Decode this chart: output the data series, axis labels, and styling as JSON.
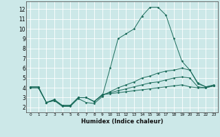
{
  "xlabel": "Humidex (Indice chaleur)",
  "xlim": [
    -0.5,
    23.5
  ],
  "ylim": [
    1.5,
    12.8
  ],
  "yticks": [
    2,
    3,
    4,
    5,
    6,
    7,
    8,
    9,
    10,
    11,
    12
  ],
  "xticks": [
    0,
    1,
    2,
    3,
    4,
    5,
    6,
    7,
    8,
    9,
    10,
    11,
    12,
    13,
    14,
    15,
    16,
    17,
    18,
    19,
    20,
    21,
    22,
    23
  ],
  "bg_color": "#cce8e8",
  "grid_color": "#ffffff",
  "line_color": "#1a6b5a",
  "curves": [
    {
      "x": [
        0,
        1,
        2,
        3,
        4,
        5,
        6,
        7,
        8,
        9,
        10,
        11,
        12,
        13,
        14,
        15,
        16,
        17,
        18,
        19,
        20,
        21,
        22,
        23
      ],
      "y": [
        4.0,
        4.0,
        2.5,
        2.7,
        2.1,
        2.1,
        2.9,
        2.5,
        2.4,
        3.1,
        6.0,
        9.0,
        9.5,
        10.0,
        11.3,
        12.2,
        12.2,
        11.4,
        9.0,
        6.7,
        5.8,
        4.5,
        4.1,
        4.2
      ]
    },
    {
      "x": [
        0,
        1,
        2,
        3,
        4,
        5,
        6,
        7,
        8,
        9,
        10,
        11,
        12,
        13,
        14,
        15,
        16,
        17,
        18,
        19,
        20,
        21,
        22,
        23
      ],
      "y": [
        4.0,
        4.0,
        2.5,
        2.7,
        2.2,
        2.2,
        3.0,
        3.0,
        2.6,
        3.2,
        3.6,
        4.0,
        4.3,
        4.6,
        5.0,
        5.2,
        5.5,
        5.7,
        5.8,
        6.0,
        5.8,
        4.4,
        4.1,
        4.3
      ]
    },
    {
      "x": [
        0,
        1,
        2,
        3,
        4,
        5,
        6,
        7,
        8,
        9,
        10,
        11,
        12,
        13,
        14,
        15,
        16,
        17,
        18,
        19,
        20,
        21,
        22,
        23
      ],
      "y": [
        4.1,
        4.1,
        2.5,
        2.8,
        2.2,
        2.2,
        3.0,
        3.0,
        2.6,
        3.3,
        3.5,
        3.7,
        3.9,
        4.1,
        4.3,
        4.5,
        4.6,
        4.8,
        5.0,
        5.1,
        5.0,
        4.1,
        4.0,
        4.2
      ]
    },
    {
      "x": [
        0,
        1,
        2,
        3,
        4,
        5,
        6,
        7,
        8,
        9,
        10,
        11,
        12,
        13,
        14,
        15,
        16,
        17,
        18,
        19,
        20,
        21,
        22,
        23
      ],
      "y": [
        4.1,
        4.1,
        2.5,
        2.8,
        2.2,
        2.2,
        3.0,
        3.0,
        2.6,
        3.3,
        3.4,
        3.5,
        3.6,
        3.7,
        3.8,
        3.9,
        4.0,
        4.1,
        4.2,
        4.3,
        4.1,
        4.0,
        4.0,
        4.2
      ]
    }
  ]
}
